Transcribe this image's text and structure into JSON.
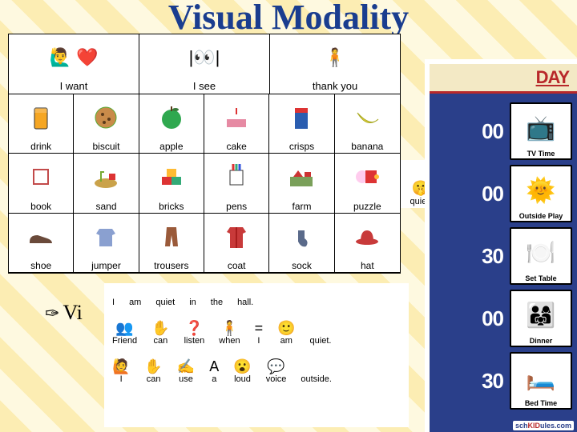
{
  "title": "Visual Modality",
  "bullet_text": "Vi",
  "pecs": {
    "headers": [
      {
        "label": "I want",
        "glyph": "🙋‍♂️ ❤️"
      },
      {
        "label": "I see",
        "glyph": "|👀|"
      },
      {
        "label": "thank you",
        "glyph": "🧍"
      }
    ],
    "cells": [
      {
        "label": "drink",
        "glyph_svg": "cup",
        "color": "#f5a623"
      },
      {
        "label": "biscuit",
        "glyph_svg": "cookie",
        "color": "#c98b4a"
      },
      {
        "label": "apple",
        "glyph_svg": "apple",
        "color": "#2fa84f"
      },
      {
        "label": "cake",
        "glyph_svg": "cake",
        "color": "#e68aa3"
      },
      {
        "label": "crisps",
        "glyph_svg": "crisps",
        "color": "#2a5db0"
      },
      {
        "label": "banana",
        "glyph_svg": "banana",
        "color": "#f4d93e"
      },
      {
        "label": "book",
        "glyph_svg": "book",
        "color": "#c24a4a"
      },
      {
        "label": "sand",
        "glyph_svg": "sand",
        "color": "#caa24a"
      },
      {
        "label": "bricks",
        "glyph_svg": "bricks",
        "color": "#d33"
      },
      {
        "label": "pens",
        "glyph_svg": "pens",
        "color": "#333"
      },
      {
        "label": "farm",
        "glyph_svg": "farm",
        "color": "#7aa05a"
      },
      {
        "label": "puzzle",
        "glyph_svg": "puzzle",
        "color": "#d33"
      },
      {
        "label": "shoe",
        "glyph_svg": "shoe",
        "color": "#6a4a3a"
      },
      {
        "label": "jumper",
        "glyph_svg": "jumper",
        "color": "#8aa0d0"
      },
      {
        "label": "trousers",
        "glyph_svg": "trousers",
        "color": "#9a5a3a"
      },
      {
        "label": "coat",
        "glyph_svg": "coat",
        "color": "#c83a3a"
      },
      {
        "label": "sock",
        "glyph_svg": "sock",
        "color": "#5a6a8a"
      },
      {
        "label": "hat",
        "glyph_svg": "hat",
        "color": "#c83a3a"
      }
    ]
  },
  "quiet_strip": {
    "label": "quiet.",
    "glyph": "🤫"
  },
  "schedule": {
    "title_suffix": "DAY",
    "rows": [
      {
        "time": "00",
        "label": "TV Time",
        "glyph": "📺",
        "bg": "#ffffff"
      },
      {
        "time": "00",
        "label": "Outside Play",
        "glyph": "🌞",
        "bg": "#ffffff"
      },
      {
        "time": "30",
        "label": "Set Table",
        "glyph": "🍽️",
        "bg": "#ffffff"
      },
      {
        "time": "00",
        "label": "Dinner",
        "glyph": "👨‍👩‍👧",
        "bg": "#ffffff"
      },
      {
        "time": "30",
        "label": "Bed Time",
        "glyph": "🛏️",
        "bg": "#ffffff"
      }
    ],
    "logo": {
      "pre": "sch",
      "mid": "KID",
      "post": "ules.com"
    },
    "board_bg": "#2a3f8a",
    "header_bg": "#f3e9c5",
    "header_underline": "#b8282a"
  },
  "sentence_strip": {
    "rows": [
      [
        {
          "w": "I",
          "g": ""
        },
        {
          "w": "am",
          "g": ""
        },
        {
          "w": "quiet",
          "g": ""
        },
        {
          "w": "in",
          "g": ""
        },
        {
          "w": "the",
          "g": ""
        },
        {
          "w": "hall.",
          "g": ""
        }
      ],
      [
        {
          "w": "Friend",
          "g": "👥"
        },
        {
          "w": "can",
          "g": "✋"
        },
        {
          "w": "listen",
          "g": "❓"
        },
        {
          "w": "when",
          "g": "🧍"
        },
        {
          "w": "I",
          "g": "="
        },
        {
          "w": "am",
          "g": "🙂"
        },
        {
          "w": "quiet.",
          "g": ""
        }
      ],
      [
        {
          "w": "I",
          "g": "🙋"
        },
        {
          "w": "can",
          "g": "✋"
        },
        {
          "w": "use",
          "g": "✍️"
        },
        {
          "w": "a",
          "g": "A"
        },
        {
          "w": "loud",
          "g": "😮"
        },
        {
          "w": "voice",
          "g": "💬"
        },
        {
          "w": "outside.",
          "g": ""
        }
      ]
    ]
  },
  "colors": {
    "title": "#1a3d8f",
    "stripe_a": "#fcedb3",
    "stripe_b": "#fef9e0"
  }
}
